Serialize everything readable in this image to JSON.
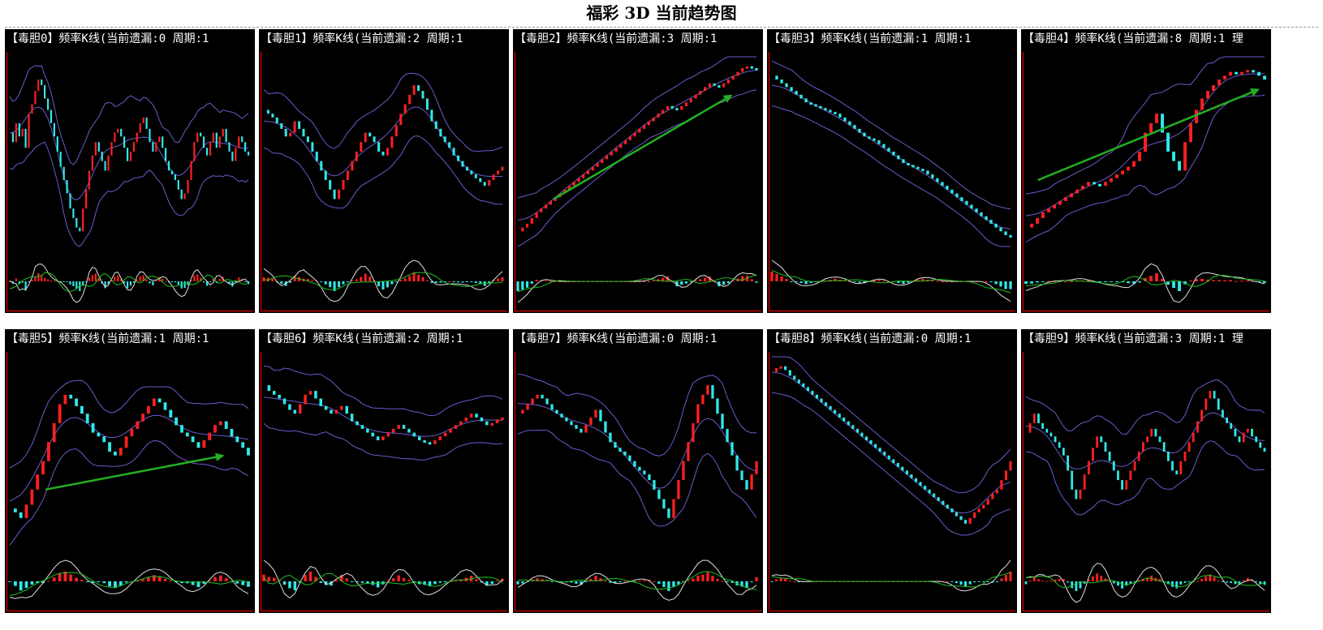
{
  "page_title": "福彩 3D 当前趋势图",
  "colors": {
    "background": "#000000",
    "axis_red": "#c00000",
    "candle_up": "#ff2020",
    "candle_down": "#30e8e8",
    "band": "#6a5ccc",
    "trend_arrow": "#22b022",
    "osc_white": "#e0e0e0",
    "osc_green": "#22c022"
  },
  "panels": [
    {
      "title": "【毒胆0】频率K线(当前遗漏:0 周期:1",
      "trend": null,
      "chart_data": {
        "type": "candlestick",
        "close": [
          60,
          55,
          65,
          58,
          62,
          52,
          70,
          75,
          82,
          88,
          85,
          78,
          72,
          65,
          58,
          50,
          42,
          35,
          28,
          20,
          15,
          10,
          8,
          20,
          30,
          40,
          48,
          55,
          50,
          45,
          40,
          48,
          55,
          60,
          62,
          58,
          52,
          45,
          50,
          55,
          60,
          65,
          68,
          62,
          55,
          50,
          55,
          58,
          52,
          45,
          40,
          38,
          35,
          30,
          25,
          28,
          35,
          45,
          55,
          60,
          58,
          52,
          48,
          55,
          60,
          52,
          58,
          62,
          55,
          50,
          45,
          52,
          58,
          55,
          50,
          48
        ]
      }
    },
    {
      "title": "【毒胆1】频率K线(当前遗漏:2 周期:1",
      "trend": null,
      "chart_data": {
        "type": "candlestick",
        "close": [
          72,
          70,
          68,
          65,
          62,
          58,
          60,
          66,
          62,
          58,
          55,
          50,
          45,
          40,
          35,
          30,
          25,
          30,
          35,
          40,
          45,
          50,
          55,
          60,
          58,
          55,
          50,
          48,
          52,
          58,
          64,
          70,
          75,
          80,
          85,
          82,
          78,
          72,
          66,
          62,
          58,
          55,
          52,
          48,
          45,
          42,
          40,
          38,
          36,
          34,
          32,
          35,
          38,
          40,
          42
        ]
      }
    },
    {
      "title": "【毒胆2】频率K线(当前遗漏:3 周期:1",
      "trend": {
        "x0": 0.15,
        "y0": 0.25,
        "x1": 0.9,
        "y1": 0.8
      },
      "chart_data": {
        "type": "candlestick",
        "close": [
          8,
          10,
          12,
          15,
          18,
          20,
          22,
          24,
          26,
          28,
          30,
          32,
          34,
          36,
          38,
          40,
          42,
          44,
          46,
          48,
          50,
          52,
          54,
          56,
          58,
          60,
          62,
          64,
          66,
          68,
          70,
          72,
          74,
          73,
          72,
          74,
          76,
          78,
          80,
          82,
          84,
          86,
          85,
          84,
          86,
          88,
          90,
          92,
          94,
          95,
          94,
          93
        ]
      }
    },
    {
      "title": "【毒胆3】频率K线(当前遗漏:1 周期:1",
      "trend": null,
      "chart_data": {
        "type": "candlestick",
        "close": [
          90,
          88,
          86,
          84,
          82,
          80,
          78,
          76,
          75,
          74,
          73,
          72,
          71,
          70,
          68,
          66,
          64,
          62,
          60,
          58,
          57,
          56,
          54,
          52,
          50,
          48,
          46,
          44,
          43,
          42,
          41,
          40,
          38,
          36,
          34,
          32,
          30,
          28,
          26,
          24,
          22,
          20,
          18,
          16,
          14,
          12,
          10,
          8,
          6,
          5
        ]
      }
    },
    {
      "title": "【毒胆4】频率K线(当前遗漏:8 周期:1 理",
      "trend": {
        "x0": 0.05,
        "y0": 0.35,
        "x1": 0.98,
        "y1": 0.83
      },
      "chart_data": {
        "type": "candlestick",
        "close": [
          10,
          12,
          15,
          18,
          20,
          22,
          24,
          26,
          28,
          30,
          32,
          34,
          33,
          32,
          34,
          36,
          38,
          40,
          42,
          45,
          50,
          60,
          65,
          70,
          60,
          50,
          45,
          40,
          55,
          65,
          72,
          78,
          82,
          85,
          88,
          90,
          92,
          91,
          92,
          93,
          92,
          90,
          88
        ]
      }
    },
    {
      "title": "【毒胆5】频率K线(当前遗漏:1 周期:1",
      "trend": {
        "x0": 0.15,
        "y0": 0.3,
        "x1": 0.9,
        "y1": 0.48
      },
      "chart_data": {
        "type": "candlestick",
        "close": [
          20,
          18,
          15,
          22,
          30,
          38,
          45,
          55,
          65,
          75,
          80,
          78,
          74,
          70,
          65,
          60,
          58,
          55,
          50,
          48,
          52,
          58,
          62,
          66,
          70,
          74,
          78,
          76,
          72,
          68,
          64,
          60,
          58,
          55,
          52,
          56,
          60,
          64,
          66,
          62,
          58,
          55,
          52,
          48
        ]
      }
    },
    {
      "title": "【毒胆6】频率K线(当前遗漏:2 周期:1",
      "trend": null,
      "chart_data": {
        "type": "candlestick",
        "close": [
          85,
          82,
          80,
          78,
          75,
          72,
          70,
          75,
          80,
          82,
          78,
          74,
          72,
          70,
          72,
          74,
          70,
          66,
          64,
          62,
          60,
          58,
          56,
          58,
          60,
          62,
          64,
          62,
          60,
          58,
          56,
          55,
          54,
          56,
          58,
          60,
          62,
          64,
          66,
          68,
          70,
          68,
          66,
          64,
          65,
          67,
          68
        ]
      }
    },
    {
      "title": "【毒胆7】频率K线(当前遗漏:0 周期:1",
      "trend": null,
      "chart_data": {
        "type": "candlestick",
        "close": [
          70,
          72,
          75,
          78,
          80,
          78,
          75,
          72,
          70,
          68,
          66,
          64,
          62,
          60,
          64,
          68,
          72,
          66,
          60,
          55,
          52,
          50,
          48,
          45,
          42,
          40,
          38,
          35,
          30,
          25,
          20,
          15,
          25,
          35,
          45,
          55,
          65,
          75,
          80,
          85,
          78,
          70,
          62,
          55,
          48,
          40,
          35,
          30,
          38,
          45
        ]
      }
    },
    {
      "title": "【毒胆8】频率K线(当前遗漏:0 周期:1",
      "trend": null,
      "chart_data": {
        "type": "candlestick",
        "close": [
          92,
          94,
          95,
          93,
          90,
          88,
          86,
          84,
          82,
          80,
          78,
          76,
          74,
          72,
          70,
          68,
          66,
          64,
          62,
          60,
          58,
          56,
          54,
          52,
          50,
          48,
          46,
          44,
          42,
          40,
          38,
          36,
          34,
          32,
          30,
          28,
          26,
          24,
          22,
          20,
          18,
          16,
          14,
          12,
          15,
          18,
          20,
          22,
          25,
          28,
          30,
          35,
          40,
          45
        ]
      }
    },
    {
      "title": "【毒胆9】频率K线(当前遗漏:3 周期:1 理",
      "trend": null,
      "chart_data": {
        "type": "candlestick",
        "close": [
          60,
          65,
          70,
          65,
          62,
          60,
          58,
          55,
          52,
          48,
          40,
          30,
          25,
          30,
          38,
          45,
          52,
          58,
          55,
          50,
          45,
          40,
          35,
          30,
          35,
          40,
          45,
          50,
          55,
          58,
          62,
          58,
          55,
          50,
          45,
          40,
          38,
          45,
          50,
          55,
          60,
          66,
          72,
          78,
          82,
          78,
          72,
          68,
          65,
          62,
          58,
          55,
          60,
          62,
          58,
          55,
          52,
          50
        ]
      }
    }
  ]
}
